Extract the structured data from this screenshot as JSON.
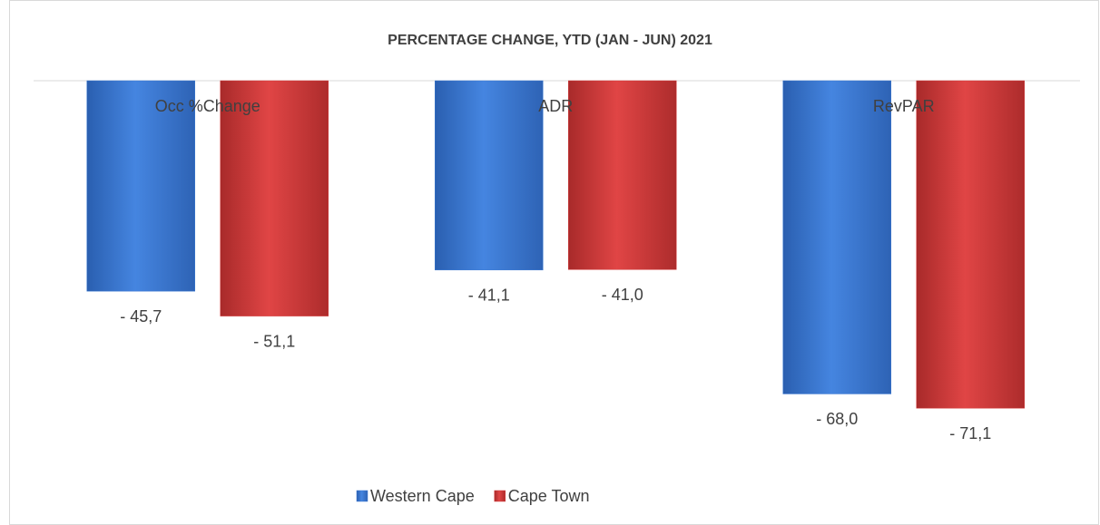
{
  "chart_data": {
    "type": "bar",
    "title": "PERCENTAGE CHANGE, YTD (JAN - JUN) 2021",
    "categories": [
      "Occ %Change",
      "ADR",
      "RevPAR"
    ],
    "series": [
      {
        "name": "Western Cape",
        "color": "#3a78d2",
        "values": [
          -45.7,
          -41.1,
          -68.0
        ],
        "value_labels": [
          "- 45,7",
          "- 41,1",
          "- 68,0"
        ]
      },
      {
        "name": "Cape Town",
        "color": "#d43b3b",
        "values": [
          -51.1,
          -41.0,
          -71.1
        ],
        "value_labels": [
          "- 51,1",
          "- 41,0",
          "- 71,1"
        ]
      }
    ],
    "legend": "bottom"
  }
}
